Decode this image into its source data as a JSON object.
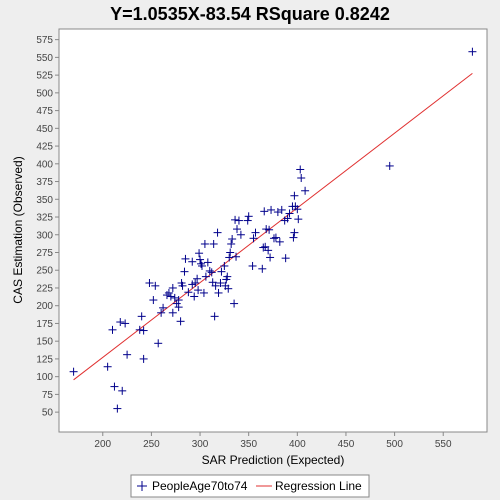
{
  "chart_data": {
    "type": "scatter",
    "title": "Y=1.0535X-83.54    RSquare 0.8242",
    "xlabel": "SAR Prediction (Expected)",
    "ylabel": "CAS Estimation (Observed)",
    "xlim": [
      155,
      595
    ],
    "ylim": [
      22,
      590
    ],
    "x_ticks": [
      200,
      250,
      300,
      350,
      400,
      450,
      500,
      550
    ],
    "y_ticks": [
      50,
      75,
      100,
      125,
      150,
      175,
      200,
      225,
      250,
      275,
      300,
      325,
      350,
      375,
      400,
      425,
      450,
      475,
      500,
      525,
      550,
      575
    ],
    "grid": false,
    "legend_position": "bottom",
    "colors": {
      "points": "#00008b",
      "regression_line": "#e03030",
      "plot_background": "#ffffff",
      "page_background": "#eeeeee"
    },
    "series": [
      {
        "name": "PeopleAge70to74",
        "marker": "plus",
        "points": [
          [
            170,
            107
          ],
          [
            205,
            114
          ],
          [
            210,
            166
          ],
          [
            212,
            86
          ],
          [
            215,
            55
          ],
          [
            218,
            177
          ],
          [
            220,
            80
          ],
          [
            223,
            175
          ],
          [
            225,
            131
          ],
          [
            238,
            166
          ],
          [
            240,
            185
          ],
          [
            242,
            125
          ],
          [
            242,
            165
          ],
          [
            248,
            232
          ],
          [
            252,
            208
          ],
          [
            254,
            228
          ],
          [
            257,
            147
          ],
          [
            260,
            190
          ],
          [
            262,
            197
          ],
          [
            266,
            215
          ],
          [
            268,
            218
          ],
          [
            270,
            213
          ],
          [
            272,
            225
          ],
          [
            272,
            190
          ],
          [
            274,
            211
          ],
          [
            276,
            203
          ],
          [
            278,
            198
          ],
          [
            278,
            208
          ],
          [
            280,
            178
          ],
          [
            281,
            232
          ],
          [
            282,
            228
          ],
          [
            284,
            248
          ],
          [
            285,
            266
          ],
          [
            288,
            219
          ],
          [
            292,
            230
          ],
          [
            292,
            262
          ],
          [
            294,
            213
          ],
          [
            295,
            232
          ],
          [
            297,
            238
          ],
          [
            298,
            222
          ],
          [
            299,
            274
          ],
          [
            300,
            265
          ],
          [
            301,
            259
          ],
          [
            302,
            256
          ],
          [
            304,
            218
          ],
          [
            305,
            287
          ],
          [
            306,
            241
          ],
          [
            308,
            261
          ],
          [
            310,
            249
          ],
          [
            312,
            247
          ],
          [
            313,
            233
          ],
          [
            314,
            287
          ],
          [
            315,
            185
          ],
          [
            316,
            228
          ],
          [
            318,
            303
          ],
          [
            319,
            218
          ],
          [
            321,
            232
          ],
          [
            322,
            248
          ],
          [
            325,
            256
          ],
          [
            326,
            228
          ],
          [
            327,
            237
          ],
          [
            328,
            241
          ],
          [
            329,
            224
          ],
          [
            330,
            268
          ],
          [
            331,
            275
          ],
          [
            332,
            287
          ],
          [
            333,
            294
          ],
          [
            335,
            203
          ],
          [
            336,
            321
          ],
          [
            337,
            269
          ],
          [
            338,
            308
          ],
          [
            340,
            320
          ],
          [
            342,
            300
          ],
          [
            349,
            320
          ],
          [
            350,
            326
          ],
          [
            354,
            256
          ],
          [
            355,
            295
          ],
          [
            357,
            303
          ],
          [
            364,
            252
          ],
          [
            365,
            282
          ],
          [
            366,
            333
          ],
          [
            367,
            283
          ],
          [
            368,
            308
          ],
          [
            370,
            278
          ],
          [
            371,
            307
          ],
          [
            372,
            268
          ],
          [
            373,
            335
          ],
          [
            376,
            295
          ],
          [
            378,
            296
          ],
          [
            380,
            332
          ],
          [
            382,
            290
          ],
          [
            384,
            335
          ],
          [
            387,
            320
          ],
          [
            388,
            267
          ],
          [
            390,
            323
          ],
          [
            392,
            330
          ],
          [
            395,
            340
          ],
          [
            396,
            296
          ],
          [
            397,
            303
          ],
          [
            397,
            355
          ],
          [
            398,
            340
          ],
          [
            400,
            336
          ],
          [
            401,
            322
          ],
          [
            403,
            392
          ],
          [
            404,
            380
          ],
          [
            408,
            362
          ],
          [
            495,
            397
          ],
          [
            580,
            558
          ]
        ]
      },
      {
        "name": "Regression Line",
        "type": "line",
        "slope": 1.0535,
        "intercept": -83.54,
        "x_range": [
          170,
          580
        ]
      }
    ]
  }
}
